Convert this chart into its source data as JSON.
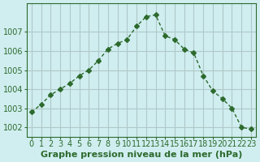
{
  "x": [
    0,
    1,
    2,
    3,
    4,
    5,
    6,
    7,
    8,
    9,
    10,
    11,
    12,
    13,
    14,
    15,
    16,
    17,
    18,
    19,
    20,
    21,
    22,
    23
  ],
  "y": [
    1002.8,
    1003.2,
    1003.7,
    1004.0,
    1004.3,
    1004.7,
    1005.0,
    1005.5,
    1006.1,
    1006.4,
    1006.6,
    1007.3,
    1007.8,
    1007.9,
    1006.8,
    1006.6,
    1006.1,
    1005.9,
    1004.7,
    1003.9,
    1003.5,
    1003.0,
    1002.0,
    1001.9
  ],
  "line_color": "#2d6a2d",
  "marker": "D",
  "marker_size": 3,
  "bg_color": "#d0eef0",
  "grid_color": "#b0c8c8",
  "xlabel": "Graphe pression niveau de la mer (hPa)",
  "xlabel_fontsize": 8,
  "tick_fontsize": 7,
  "ylim": [
    1001.5,
    1008.5
  ],
  "yticks": [
    1002,
    1003,
    1004,
    1005,
    1006,
    1007
  ],
  "xlim": [
    -0.5,
    23.5
  ],
  "xticks": [
    0,
    1,
    2,
    3,
    4,
    5,
    6,
    7,
    8,
    9,
    10,
    11,
    12,
    13,
    14,
    15,
    16,
    17,
    18,
    19,
    20,
    21,
    22,
    23
  ]
}
